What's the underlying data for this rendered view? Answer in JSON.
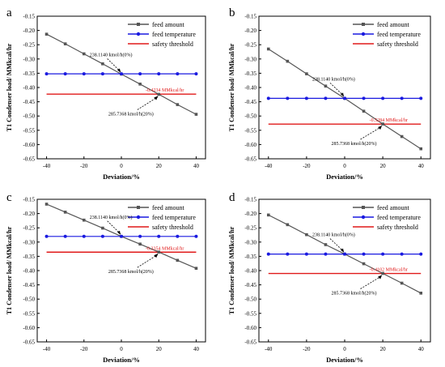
{
  "figure": {
    "panels": [
      {
        "label": "a"
      },
      {
        "label": "b"
      },
      {
        "label": "c"
      },
      {
        "label": "d"
      }
    ]
  },
  "colors": {
    "feed_amount": "#555555",
    "feed_temperature": "#1a1ae0",
    "safety_threshold": "#e01a1a",
    "annotation_red": "#e01a1a",
    "axis": "#000000"
  },
  "chart_data": [
    {
      "panel": "a",
      "type": "line",
      "xlabel": "Deviation/%",
      "ylabel": "T1 Condenser load/ MMkcal/hr",
      "x": [
        -40,
        -30,
        -20,
        -10,
        0,
        10,
        20,
        30,
        40
      ],
      "xlim": [
        -45,
        45
      ],
      "ylim": [
        -0.65,
        -0.15
      ],
      "xticks": [
        -40,
        -20,
        0,
        20,
        40
      ],
      "yticks": [
        -0.15,
        -0.2,
        -0.25,
        -0.3,
        -0.35,
        -0.4,
        -0.45,
        -0.5,
        -0.55,
        -0.6,
        -0.65
      ],
      "grid": false,
      "legend_position": "top-right",
      "series": [
        {
          "name": "feed amount",
          "values": [
            -0.213,
            -0.247,
            -0.282,
            -0.317,
            -0.353,
            -0.388,
            -0.424,
            -0.46,
            -0.494
          ]
        },
        {
          "name": "feed temperature",
          "values": [
            -0.352,
            -0.352,
            -0.352,
            -0.352,
            -0.352,
            -0.352,
            -0.352,
            -0.352,
            -0.352
          ]
        }
      ],
      "threshold": {
        "name": "safety threshold",
        "value": -0.4234,
        "label": "-0.4234 MMkcal/hr"
      },
      "annotations": [
        {
          "text": "238.1140 kmol/h(0%)",
          "x": 0,
          "y": -0.353
        },
        {
          "text": "285.7368 kmol/h(20%)",
          "x": 20,
          "y": -0.424
        }
      ]
    },
    {
      "panel": "b",
      "type": "line",
      "xlabel": "Deviation/%",
      "ylabel": "T1 Condenser load/ MMkcal/hr",
      "x": [
        -40,
        -30,
        -20,
        -10,
        0,
        10,
        20,
        30,
        40
      ],
      "xlim": [
        -45,
        45
      ],
      "ylim": [
        -0.65,
        -0.15
      ],
      "xticks": [
        -40,
        -20,
        0,
        20,
        40
      ],
      "yticks": [
        -0.15,
        -0.2,
        -0.25,
        -0.3,
        -0.35,
        -0.4,
        -0.45,
        -0.5,
        -0.55,
        -0.6,
        -0.65
      ],
      "grid": false,
      "legend_position": "top-right",
      "series": [
        {
          "name": "feed amount",
          "values": [
            -0.265,
            -0.308,
            -0.352,
            -0.395,
            -0.438,
            -0.483,
            -0.528,
            -0.572,
            -0.615
          ]
        },
        {
          "name": "feed temperature",
          "values": [
            -0.438,
            -0.438,
            -0.438,
            -0.438,
            -0.438,
            -0.438,
            -0.438,
            -0.438,
            -0.438
          ]
        }
      ],
      "threshold": {
        "name": "safety threshold",
        "value": -0.5284,
        "label": "-0.5284 MMkcal/hr"
      },
      "annotations": [
        {
          "text": "238.1140 kmol/h(0%)",
          "x": 0,
          "y": -0.438
        },
        {
          "text": "285.7368 kmol/h(20%)",
          "x": 20,
          "y": -0.528
        }
      ]
    },
    {
      "panel": "c",
      "type": "line",
      "xlabel": "Deviation/%",
      "ylabel": "T1 Condenser load/ MMkcal/hr",
      "x": [
        -40,
        -30,
        -20,
        -10,
        0,
        10,
        20,
        30,
        40
      ],
      "xlim": [
        -45,
        45
      ],
      "ylim": [
        -0.65,
        -0.15
      ],
      "xticks": [
        -40,
        -20,
        0,
        20,
        40
      ],
      "yticks": [
        -0.15,
        -0.2,
        -0.25,
        -0.3,
        -0.35,
        -0.4,
        -0.45,
        -0.5,
        -0.55,
        -0.6,
        -0.65
      ],
      "grid": false,
      "legend_position": "top-right",
      "series": [
        {
          "name": "feed amount",
          "values": [
            -0.167,
            -0.195,
            -0.223,
            -0.251,
            -0.28,
            -0.307,
            -0.335,
            -0.364,
            -0.392
          ]
        },
        {
          "name": "feed temperature",
          "values": [
            -0.28,
            -0.28,
            -0.28,
            -0.28,
            -0.28,
            -0.28,
            -0.28,
            -0.28,
            -0.28
          ]
        }
      ],
      "threshold": {
        "name": "safety threshold",
        "value": -0.3354,
        "label": "-0.3354 MMkcal/hr"
      },
      "annotations": [
        {
          "text": "238.1140 kmol/h(0%)",
          "x": 0,
          "y": -0.28
        },
        {
          "text": "285.7368 kmol/h(20%)",
          "x": 20,
          "y": -0.335
        }
      ]
    },
    {
      "panel": "d",
      "type": "line",
      "xlabel": "Deviation/%",
      "ylabel": "T1 Condenser load/ MMkcal/hr",
      "x": [
        -40,
        -30,
        -20,
        -10,
        0,
        10,
        20,
        30,
        40
      ],
      "xlim": [
        -45,
        45
      ],
      "ylim": [
        -0.65,
        -0.15
      ],
      "xticks": [
        -40,
        -20,
        0,
        20,
        40
      ],
      "yticks": [
        -0.15,
        -0.2,
        -0.25,
        -0.3,
        -0.35,
        -0.4,
        -0.45,
        -0.5,
        -0.55,
        -0.6,
        -0.65
      ],
      "grid": false,
      "legend_position": "top-right",
      "series": [
        {
          "name": "feed amount",
          "values": [
            -0.205,
            -0.239,
            -0.274,
            -0.309,
            -0.342,
            -0.376,
            -0.41,
            -0.444,
            -0.479
          ]
        },
        {
          "name": "feed temperature",
          "values": [
            -0.342,
            -0.342,
            -0.342,
            -0.342,
            -0.342,
            -0.342,
            -0.342,
            -0.342,
            -0.342
          ]
        }
      ],
      "threshold": {
        "name": "safety threshold",
        "value": -0.4102,
        "label": "-0.4102 MMkcal/hr"
      },
      "annotations": [
        {
          "text": "238.1140 kmol/h(0%)",
          "x": 0,
          "y": -0.342
        },
        {
          "text": "285.7368 kmol/h(20%)",
          "x": 20,
          "y": -0.41
        }
      ]
    }
  ]
}
